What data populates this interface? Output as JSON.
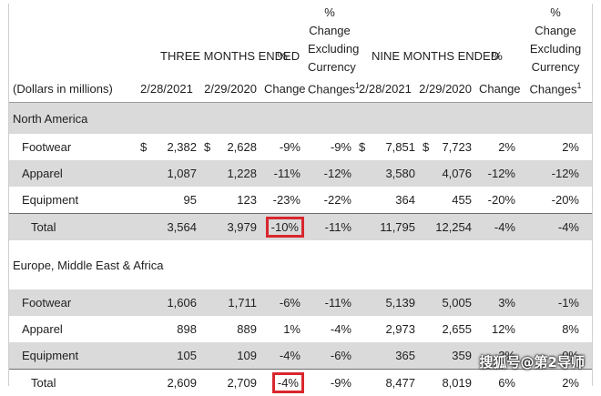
{
  "header": {
    "units": "(Dollars in millions)",
    "three_months": "THREE MONTHS ENDED",
    "nine_months": "NINE MONTHS ENDED",
    "pct": "%",
    "change": "Change",
    "cur_pct": "%",
    "cur_change": "Change",
    "cur_excluding": "Excluding",
    "cur_currency": "Currency",
    "cur_changes": "Changes",
    "footnote": "1",
    "d1": "2/28/2021",
    "d2": "2/29/2020",
    "d3": "2/28/2021",
    "d4": "2/29/2020"
  },
  "sections": [
    {
      "name": "North America",
      "rows": [
        {
          "label": "Footwear",
          "dollar1": "$",
          "v1": "2,382",
          "dollar2": "$",
          "v2": "2,628",
          "p1": "-9%",
          "c1": "-9%",
          "dollar3": "$",
          "v3": "7,851",
          "dollar4": "$",
          "v4": "7,723",
          "p2": "2%",
          "c2": "2%"
        },
        {
          "label": "Apparel",
          "v1": "1,087",
          "v2": "1,228",
          "p1": "-11%",
          "c1": "-12%",
          "v3": "3,580",
          "v4": "4,076",
          "p2": "-12%",
          "c2": "-12%"
        },
        {
          "label": "Equipment",
          "v1": "95",
          "v2": "123",
          "p1": "-23%",
          "c1": "-22%",
          "v3": "364",
          "v4": "455",
          "p2": "-20%",
          "c2": "-20%"
        },
        {
          "label": "Total",
          "v1": "3,564",
          "v2": "3,979",
          "p1": "-10%",
          "c1": "-11%",
          "v3": "11,795",
          "v4": "12,254",
          "p2": "-4%",
          "c2": "-4%"
        }
      ]
    },
    {
      "name": "Europe, Middle East & Africa",
      "rows": [
        {
          "label": "Footwear",
          "v1": "1,606",
          "v2": "1,711",
          "p1": "-6%",
          "c1": "-11%",
          "v3": "5,139",
          "v4": "5,005",
          "p2": "3%",
          "c2": "-1%"
        },
        {
          "label": "Apparel",
          "v1": "898",
          "v2": "889",
          "p1": "1%",
          "c1": "-4%",
          "v3": "2,973",
          "v4": "2,655",
          "p2": "12%",
          "c2": "8%"
        },
        {
          "label": "Equipment",
          "v1": "105",
          "v2": "109",
          "p1": "-4%",
          "c1": "-6%",
          "v3": "365",
          "v4": "359",
          "p2": "2%",
          "c2": "0%"
        },
        {
          "label": "Total",
          "v1": "2,609",
          "v2": "2,709",
          "p1": "-4%",
          "c1": "-9%",
          "v3": "8,477",
          "v4": "8,019",
          "p2": "6%",
          "c2": "2%"
        }
      ]
    }
  ],
  "highlight_color": "#d9272e",
  "shade_color": "#dadada",
  "watermark": "搜狐号@第2导师"
}
